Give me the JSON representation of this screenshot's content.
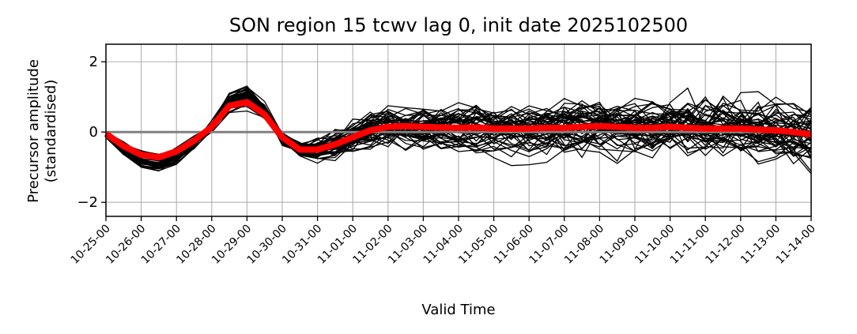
{
  "chart_data": {
    "type": "line",
    "title": "SON region 15 tcwv lag 0, init date 2025102500",
    "xlabel": "Valid Time",
    "ylabel_line1": "Precursor amplitude",
    "ylabel_line2": "(standardised)",
    "x_tick_labels": [
      "10-25-00",
      "10-26-00",
      "10-27-00",
      "10-28-00",
      "10-29-00",
      "10-30-00",
      "10-31-00",
      "11-01-00",
      "11-02-00",
      "11-03-00",
      "11-04-00",
      "11-05-00",
      "11-06-00",
      "11-07-00",
      "11-08-00",
      "11-09-00",
      "11-10-00",
      "11-11-00",
      "11-12-00",
      "11-13-00",
      "11-14-00"
    ],
    "y_ticks": [
      -2,
      0,
      2
    ],
    "y_tick_labels": [
      "−2",
      "0",
      "2"
    ],
    "ylim": [
      -2.4,
      2.5
    ],
    "xlim": [
      0,
      20
    ],
    "grid": true,
    "ensemble_members": 50,
    "ensemble_color": "#000000",
    "mean_color": "#ff0000",
    "zero_line_color": "#808080",
    "mean_series": {
      "x": [
        0,
        0.5,
        1,
        1.5,
        2,
        2.5,
        3,
        3.5,
        4,
        4.5,
        5,
        5.5,
        6,
        6.5,
        7,
        7.5,
        8,
        8.5,
        9,
        9.5,
        10,
        10.5,
        11,
        11.5,
        12,
        12.5,
        13,
        13.5,
        14,
        14.5,
        15,
        15.5,
        16,
        16.5,
        17,
        17.5,
        18,
        18.5,
        19,
        19.5,
        20
      ],
      "y": [
        -0.05,
        -0.4,
        -0.65,
        -0.72,
        -0.55,
        -0.25,
        0.15,
        0.75,
        0.85,
        0.5,
        -0.15,
        -0.5,
        -0.5,
        -0.35,
        -0.15,
        0.05,
        0.15,
        0.17,
        0.15,
        0.13,
        0.12,
        0.13,
        0.1,
        0.1,
        0.1,
        0.12,
        0.12,
        0.15,
        0.17,
        0.15,
        0.12,
        0.12,
        0.15,
        0.12,
        0.1,
        0.1,
        0.1,
        0.07,
        0.05,
        0.0,
        -0.07
      ]
    }
  }
}
